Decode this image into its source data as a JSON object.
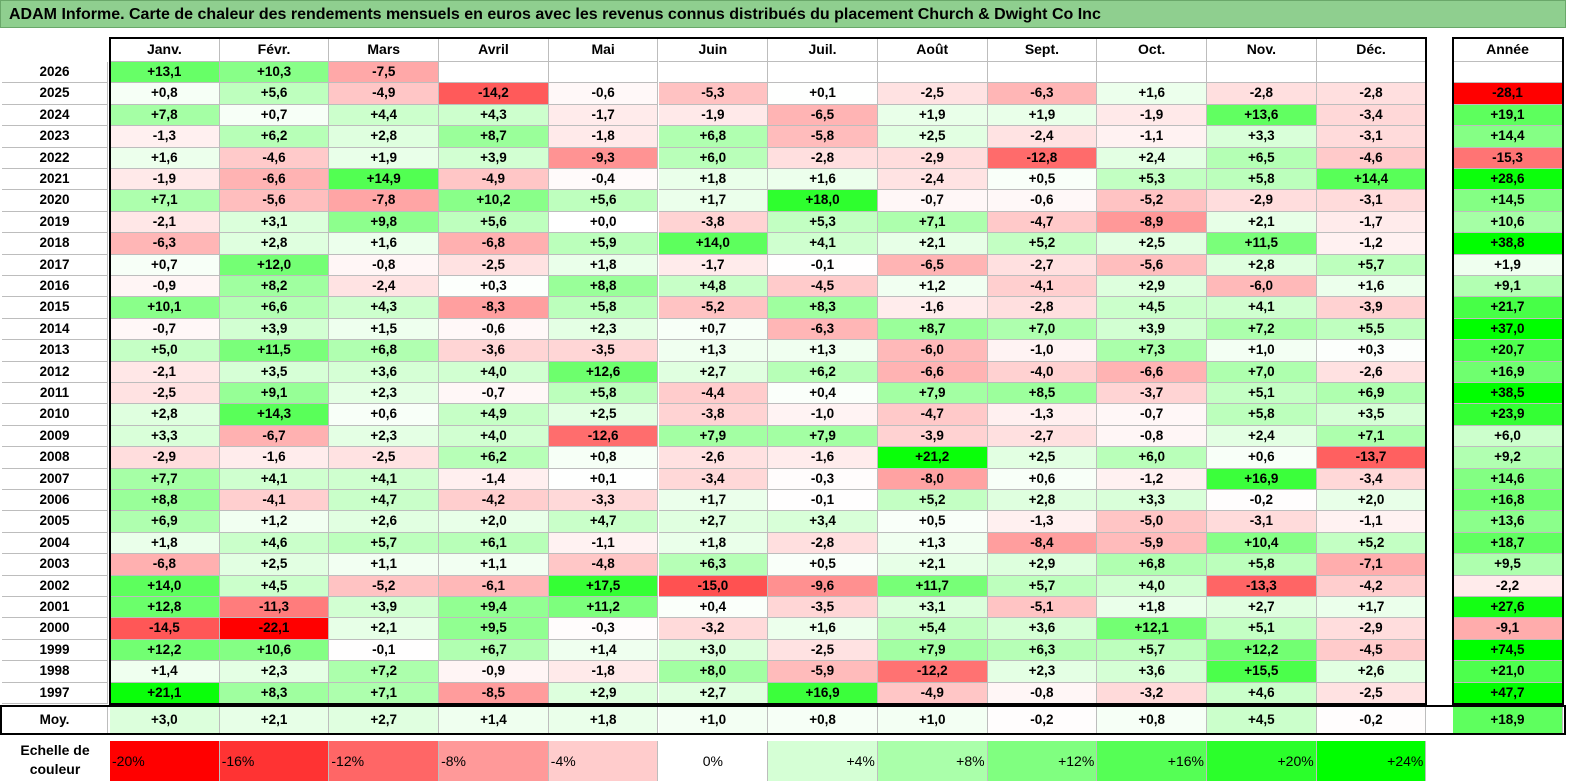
{
  "title": "ADAM Informe. Carte de chaleur des rendements mensuels en euros avec les revenus connus distribués du placement Church & Dwight Co Inc",
  "chart_data": {
    "type": "heatmap",
    "columns": [
      "Janv.",
      "Févr.",
      "Mars",
      "Avril",
      "Mai",
      "Juin",
      "Juil.",
      "Août",
      "Sept.",
      "Oct.",
      "Nov.",
      "Déc."
    ],
    "year_header": "Année",
    "rows": [
      {
        "label": "2026",
        "values": [
          13.1,
          10.3,
          -7.5,
          null,
          null,
          null,
          null,
          null,
          null,
          null,
          null,
          null
        ],
        "year": null
      },
      {
        "label": "2025",
        "values": [
          0.8,
          5.6,
          -4.9,
          -14.2,
          -0.6,
          -5.3,
          0.1,
          -2.5,
          -6.3,
          1.6,
          -2.8,
          -2.8
        ],
        "year": -28.1
      },
      {
        "label": "2024",
        "values": [
          7.8,
          0.7,
          4.4,
          4.3,
          -1.7,
          -1.9,
          -6.5,
          1.9,
          1.9,
          -1.9,
          13.6,
          -3.4
        ],
        "year": 19.1
      },
      {
        "label": "2023",
        "values": [
          -1.3,
          6.2,
          2.8,
          8.7,
          -1.8,
          6.8,
          -5.8,
          2.5,
          -2.4,
          -1.1,
          3.3,
          -3.1
        ],
        "year": 14.4
      },
      {
        "label": "2022",
        "values": [
          1.6,
          -4.6,
          1.9,
          3.9,
          -9.3,
          6.0,
          -2.8,
          -2.9,
          -12.8,
          2.4,
          6.5,
          -4.6
        ],
        "year": -15.3
      },
      {
        "label": "2021",
        "values": [
          -1.9,
          -6.6,
          14.9,
          -4.9,
          -0.4,
          1.8,
          1.6,
          -2.4,
          0.5,
          5.3,
          5.8,
          14.4
        ],
        "year": 28.6
      },
      {
        "label": "2020",
        "values": [
          7.1,
          -5.6,
          -7.8,
          10.2,
          5.6,
          1.7,
          18.0,
          -0.7,
          -0.6,
          -5.2,
          -2.9,
          -3.1
        ],
        "year": 14.5
      },
      {
        "label": "2019",
        "values": [
          -2.1,
          3.1,
          9.8,
          5.6,
          0.0,
          -3.8,
          5.3,
          7.1,
          -4.7,
          -8.9,
          2.1,
          -1.7
        ],
        "year": 10.6
      },
      {
        "label": "2018",
        "values": [
          -6.3,
          2.8,
          1.6,
          -6.8,
          5.9,
          14.0,
          4.1,
          2.1,
          5.2,
          2.5,
          11.5,
          -1.2
        ],
        "year": 38.8
      },
      {
        "label": "2017",
        "values": [
          0.7,
          12.0,
          -0.8,
          -2.5,
          1.8,
          -1.7,
          -0.1,
          -6.5,
          -2.7,
          -5.6,
          2.8,
          5.7
        ],
        "year": 1.9
      },
      {
        "label": "2016",
        "values": [
          -0.9,
          8.2,
          -2.4,
          0.3,
          8.8,
          4.8,
          -4.5,
          1.2,
          -4.1,
          2.9,
          -6.0,
          1.6
        ],
        "year": 9.1
      },
      {
        "label": "2015",
        "values": [
          10.1,
          6.6,
          4.3,
          -8.3,
          5.8,
          -5.2,
          8.3,
          -1.6,
          -2.8,
          4.5,
          4.1,
          -3.9
        ],
        "year": 21.7
      },
      {
        "label": "2014",
        "values": [
          -0.7,
          3.9,
          1.5,
          -0.6,
          2.3,
          0.7,
          -6.3,
          8.7,
          7.0,
          3.9,
          7.2,
          5.5
        ],
        "year": 37.0
      },
      {
        "label": "2013",
        "values": [
          5.0,
          11.5,
          6.8,
          -3.6,
          -3.5,
          1.3,
          1.3,
          -6.0,
          -1.0,
          7.3,
          1.0,
          0.3
        ],
        "year": 20.7
      },
      {
        "label": "2012",
        "values": [
          -2.1,
          3.5,
          3.6,
          4.0,
          12.6,
          2.7,
          6.2,
          -6.6,
          -4.0,
          -6.6,
          7.0,
          -2.6
        ],
        "year": 16.9
      },
      {
        "label": "2011",
        "values": [
          -2.5,
          9.1,
          2.3,
          -0.7,
          5.8,
          -4.4,
          0.4,
          7.9,
          8.5,
          -3.7,
          5.1,
          6.9
        ],
        "year": 38.5
      },
      {
        "label": "2010",
        "values": [
          2.8,
          14.3,
          0.6,
          4.9,
          2.5,
          -3.8,
          -1.0,
          -4.7,
          -1.3,
          -0.7,
          5.8,
          3.5
        ],
        "year": 23.9
      },
      {
        "label": "2009",
        "values": [
          3.3,
          -6.7,
          2.3,
          4.0,
          -12.6,
          7.9,
          7.9,
          -3.9,
          -2.7,
          -0.8,
          2.4,
          7.1
        ],
        "year": 6.0
      },
      {
        "label": "2008",
        "values": [
          -2.9,
          -1.6,
          -2.5,
          6.2,
          0.8,
          -2.6,
          -1.6,
          21.2,
          2.5,
          6.0,
          0.6,
          -13.7
        ],
        "year": 9.2
      },
      {
        "label": "2007",
        "values": [
          7.7,
          4.1,
          4.1,
          -1.4,
          0.1,
          -3.4,
          -0.3,
          -8.0,
          0.6,
          -1.2,
          16.9,
          -3.4
        ],
        "year": 14.6
      },
      {
        "label": "2006",
        "values": [
          8.8,
          -4.1,
          4.7,
          -4.2,
          -3.3,
          1.7,
          -0.1,
          5.2,
          2.8,
          3.3,
          -0.2,
          2.0
        ],
        "year": 16.8
      },
      {
        "label": "2005",
        "values": [
          6.9,
          1.2,
          2.6,
          2.0,
          4.7,
          2.7,
          3.4,
          0.5,
          -1.3,
          -5.0,
          -3.1,
          -1.1
        ],
        "year": 13.6
      },
      {
        "label": "2004",
        "values": [
          1.8,
          4.6,
          5.7,
          6.1,
          -1.1,
          1.8,
          -2.8,
          1.3,
          -8.4,
          -5.9,
          10.4,
          5.2
        ],
        "year": 18.7
      },
      {
        "label": "2003",
        "values": [
          -6.8,
          2.5,
          1.1,
          1.1,
          -4.8,
          6.3,
          0.5,
          2.1,
          2.9,
          6.8,
          5.8,
          -7.1
        ],
        "year": 9.5
      },
      {
        "label": "2002",
        "values": [
          14.0,
          4.5,
          -5.2,
          -6.1,
          17.5,
          -15.0,
          -9.6,
          11.7,
          5.7,
          4.0,
          -13.3,
          -4.2
        ],
        "year": -2.2
      },
      {
        "label": "2001",
        "values": [
          12.8,
          -11.3,
          3.9,
          9.4,
          11.2,
          0.4,
          -3.5,
          3.1,
          -5.1,
          1.8,
          2.7,
          1.7
        ],
        "year": 27.6
      },
      {
        "label": "2000",
        "values": [
          -14.5,
          -22.1,
          2.1,
          9.5,
          -0.3,
          -3.2,
          1.6,
          5.4,
          3.6,
          12.1,
          5.1,
          -2.9
        ],
        "year": -9.1
      },
      {
        "label": "1999",
        "values": [
          12.2,
          10.6,
          -0.1,
          6.7,
          1.4,
          3.0,
          -2.5,
          7.9,
          6.3,
          5.7,
          12.2,
          -4.5
        ],
        "year": 74.5
      },
      {
        "label": "1998",
        "values": [
          1.4,
          2.3,
          7.2,
          -0.9,
          -1.8,
          8.0,
          -5.9,
          -12.2,
          2.3,
          3.6,
          15.5,
          2.6
        ],
        "year": 21.0
      },
      {
        "label": "1997",
        "values": [
          21.1,
          8.3,
          7.1,
          -8.5,
          2.9,
          2.7,
          16.9,
          -4.9,
          -0.8,
          -3.2,
          4.6,
          -2.5
        ],
        "year": 47.7
      }
    ],
    "average": {
      "label": "Moy.",
      "values": [
        3.0,
        2.1,
        2.7,
        1.4,
        1.8,
        1.0,
        0.8,
        1.0,
        -0.2,
        0.8,
        4.5,
        -0.2
      ],
      "year": 18.9
    },
    "scale": {
      "label": "Echelle de couleur",
      "steps": [
        "-20%",
        "-16%",
        "-12%",
        "-8%",
        "-4%",
        "0%",
        "+4%",
        "+8%",
        "+12%",
        "+16%",
        "+20%",
        "+24%"
      ],
      "values": [
        -20,
        -16,
        -12,
        -8,
        -4,
        0,
        4,
        8,
        12,
        16,
        20,
        24
      ]
    },
    "colors": {
      "negative_max": "#ff0000",
      "neutral": "#ffffff",
      "positive_max": "#00ff00"
    }
  }
}
